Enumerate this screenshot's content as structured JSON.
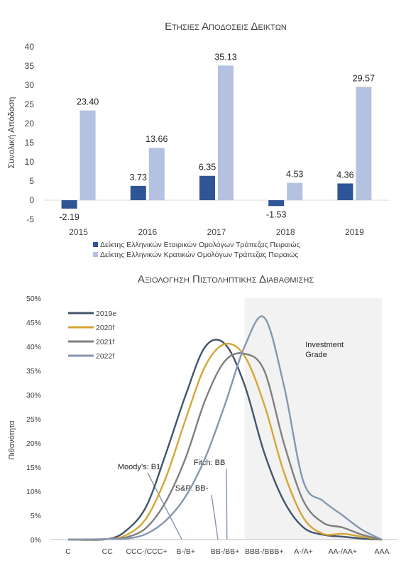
{
  "chart_data": [
    {
      "type": "bar",
      "title": "Ετησιεσ Αποδοσεισ Δεικτων",
      "ylabel": "Συνολική Απόδοση",
      "xlabel": "",
      "categories": [
        "2015",
        "2016",
        "2017",
        "2018",
        "2019"
      ],
      "ylim": [
        -5,
        40
      ],
      "yticks": [
        "40",
        "35",
        "30",
        "25",
        "20",
        "15",
        "10",
        "5",
        "0",
        "-5"
      ],
      "grid": false,
      "legend_position": "bottom",
      "series": [
        {
          "name": "Δείκτης Ελληνικών Εταιρικών Ομολόγων Τράπεζας Πειραιώς",
          "values": [
            -2.19,
            3.73,
            6.35,
            -1.53,
            4.36
          ],
          "labels": [
            "-2.19",
            "3.73",
            "6.35",
            "-1.53",
            "4.36"
          ],
          "color": "#2f5597"
        },
        {
          "name": "Δείκτης Ελληνικών Κρατικών Ομολόγων Τράπεζας Πειραιώς",
          "values": [
            23.4,
            13.66,
            35.13,
            4.53,
            29.57
          ],
          "labels": [
            "23.40",
            "13.66",
            "35.13",
            "4.53",
            "29.57"
          ],
          "color": "#b4c1e1"
        }
      ]
    },
    {
      "type": "line",
      "title": "Αξιολογηση Πιστοληπτικησ Διαβαθμισησ",
      "ylabel": "Πιθανότητα",
      "categories": [
        "C",
        "CC",
        "CCC-/CCC+",
        "B-/B+",
        "BB-/BB+",
        "BBB-/BBB+",
        "A-/A+",
        "AA-/AA+",
        "AAA"
      ],
      "ylim": [
        0,
        0.5
      ],
      "yticks": [
        "50%",
        "45%",
        "40%",
        "35%",
        "30%",
        "25%",
        "20%",
        "15%",
        "10%",
        "5%",
        "0%"
      ],
      "grid": false,
      "legend_position": "top-left",
      "shaded_region": {
        "from": 4.5,
        "to": 8,
        "label_line1": "Investment",
        "label_line2": "Grade"
      },
      "series": [
        {
          "name": "2019e",
          "color": "#44546a",
          "x": [
            0,
            1,
            1.5,
            2,
            2.5,
            3,
            3.5,
            4,
            4.5,
            5,
            5.5,
            6,
            6.5,
            7,
            7.5,
            8
          ],
          "values": [
            0,
            0.001,
            0.02,
            0.07,
            0.18,
            0.3,
            0.4,
            0.405,
            0.32,
            0.18,
            0.08,
            0.025,
            0.01,
            0.006,
            0.002,
            0
          ]
        },
        {
          "name": "2020f",
          "color": "#d4a634",
          "x": [
            0,
            1,
            1.5,
            2,
            2.5,
            3,
            3.5,
            4,
            4.5,
            5,
            5.5,
            6,
            6.5,
            7,
            7.5,
            8
          ],
          "values": [
            0,
            0.001,
            0.01,
            0.045,
            0.13,
            0.25,
            0.36,
            0.405,
            0.38,
            0.28,
            0.14,
            0.045,
            0.012,
            0.012,
            0.006,
            0
          ]
        },
        {
          "name": "2021f",
          "color": "#7f7f7f",
          "x": [
            0,
            1,
            1.5,
            2,
            2.5,
            3,
            3.5,
            4,
            4.5,
            5,
            5.5,
            6,
            6.5,
            7,
            7.5,
            8
          ],
          "values": [
            0,
            0.001,
            0.005,
            0.025,
            0.08,
            0.17,
            0.29,
            0.37,
            0.385,
            0.35,
            0.2,
            0.08,
            0.035,
            0.025,
            0.01,
            0
          ]
        },
        {
          "name": "2022f",
          "color": "#8497b0",
          "x": [
            0,
            1,
            1.5,
            2,
            2.5,
            3,
            3.5,
            4,
            4.5,
            5,
            5.5,
            6,
            6.5,
            7,
            7.5,
            8
          ],
          "values": [
            0,
            0.001,
            0.002,
            0.012,
            0.04,
            0.09,
            0.17,
            0.28,
            0.4,
            0.46,
            0.32,
            0.12,
            0.08,
            0.05,
            0.02,
            0
          ]
        }
      ],
      "annotations": [
        {
          "text": "Moody’s: B1",
          "x": 2.9
        },
        {
          "text": "S&P: BB-",
          "x": 3.82
        },
        {
          "text": "Fitch: BB",
          "x": 4.05
        }
      ]
    }
  ]
}
